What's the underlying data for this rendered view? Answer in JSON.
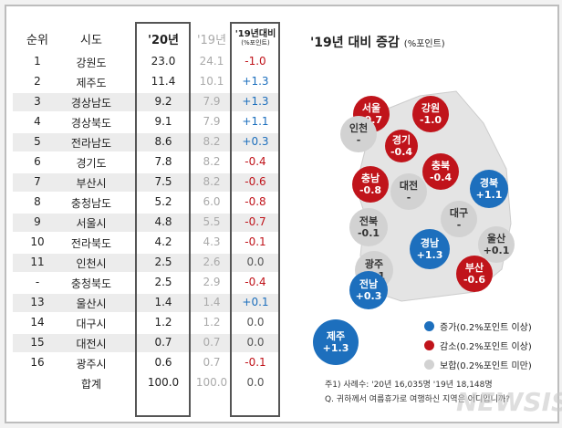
{
  "chart_data": {
    "type": "table",
    "title": "'19년 대비 증감",
    "title_unit": "(%포인트)",
    "headers": [
      "순위",
      "시도",
      "'20년",
      "'19년",
      "'19년대비",
      "(%포인트)"
    ],
    "rows": [
      {
        "rank": "1",
        "region": "강원도",
        "y20": "23.0",
        "y19": "24.1",
        "diff": "-1.0"
      },
      {
        "rank": "2",
        "region": "제주도",
        "y20": "11.4",
        "y19": "10.1",
        "diff": "+1.3"
      },
      {
        "rank": "3",
        "region": "경상남도",
        "y20": "9.2",
        "y19": "7.9",
        "diff": "+1.3"
      },
      {
        "rank": "4",
        "region": "경상북도",
        "y20": "9.1",
        "y19": "7.9",
        "diff": "+1.1"
      },
      {
        "rank": "5",
        "region": "전라남도",
        "y20": "8.6",
        "y19": "8.2",
        "diff": "+0.3"
      },
      {
        "rank": "6",
        "region": "경기도",
        "y20": "7.8",
        "y19": "8.2",
        "diff": "-0.4"
      },
      {
        "rank": "7",
        "region": "부산시",
        "y20": "7.5",
        "y19": "8.2",
        "diff": "-0.6"
      },
      {
        "rank": "8",
        "region": "충청남도",
        "y20": "5.2",
        "y19": "6.0",
        "diff": "-0.8"
      },
      {
        "rank": "9",
        "region": "서울시",
        "y20": "4.8",
        "y19": "5.5",
        "diff": "-0.7"
      },
      {
        "rank": "10",
        "region": "전라북도",
        "y20": "4.2",
        "y19": "4.3",
        "diff": "-0.1"
      },
      {
        "rank": "11",
        "region": "인천시",
        "y20": "2.5",
        "y19": "2.6",
        "diff": "0.0"
      },
      {
        "rank": "-",
        "region": "충청북도",
        "y20": "2.5",
        "y19": "2.9",
        "diff": "-0.4"
      },
      {
        "rank": "13",
        "region": "울산시",
        "y20": "1.4",
        "y19": "1.4",
        "diff": "+0.1"
      },
      {
        "rank": "14",
        "region": "대구시",
        "y20": "1.2",
        "y19": "1.2",
        "diff": "0.0"
      },
      {
        "rank": "15",
        "region": "대전시",
        "y20": "0.7",
        "y19": "0.7",
        "diff": "0.0"
      },
      {
        "rank": "16",
        "region": "광주시",
        "y20": "0.6",
        "y19": "0.7",
        "diff": "-0.1"
      },
      {
        "rank": "",
        "region": "합계",
        "y20": "100.0",
        "y19": "100.0",
        "diff": "0.0"
      }
    ],
    "map": [
      {
        "name": "서울",
        "value": "-0.7",
        "cls": "red"
      },
      {
        "name": "강원",
        "value": "-1.0",
        "cls": "red"
      },
      {
        "name": "인천",
        "value": "-",
        "cls": "gray"
      },
      {
        "name": "경기",
        "value": "-0.4",
        "cls": "red"
      },
      {
        "name": "충남",
        "value": "-0.8",
        "cls": "red"
      },
      {
        "name": "충북",
        "value": "-0.4",
        "cls": "red"
      },
      {
        "name": "대전",
        "value": "-",
        "cls": "gray"
      },
      {
        "name": "경북",
        "value": "+1.1",
        "cls": "blue"
      },
      {
        "name": "전북",
        "value": "-0.1",
        "cls": "gray"
      },
      {
        "name": "대구",
        "value": "-",
        "cls": "gray"
      },
      {
        "name": "광주",
        "value": "-0.1",
        "cls": "gray"
      },
      {
        "name": "경남",
        "value": "+1.3",
        "cls": "blue"
      },
      {
        "name": "울산",
        "value": "+0.1",
        "cls": "gray"
      },
      {
        "name": "전남",
        "value": "+0.3",
        "cls": "blue"
      },
      {
        "name": "부산",
        "value": "-0.6",
        "cls": "red"
      },
      {
        "name": "제주",
        "value": "+1.3",
        "cls": "blue"
      }
    ],
    "legend": [
      {
        "label": "증가(0.2%포인트 이상)",
        "color": "#1d6fbd"
      },
      {
        "label": "감소(0.2%포인트 이상)",
        "color": "#c0141b"
      },
      {
        "label": "보합(0.2%포인트 미만)",
        "color": "#d2d2d2"
      }
    ]
  },
  "notes": [
    "주1) 사례수: '20년 16,035명 '19년 18,148명",
    "Q. 귀하께서 여름휴가로 여행하신 지역은 어디입니까?"
  ],
  "watermark": "NEWSIS",
  "colors": {
    "pos": "#1d6fbd",
    "neg": "#c0141b",
    "zero": "#555555"
  }
}
